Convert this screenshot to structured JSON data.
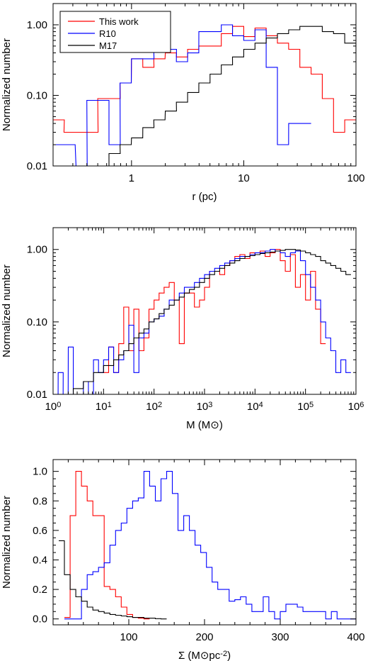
{
  "chart_data": [
    {
      "type": "line",
      "step": true,
      "xscale": "log",
      "yscale": "log",
      "xlim": [
        0.2,
        100
      ],
      "ylim": [
        0.01,
        2
      ],
      "xlabel": "r (pc)",
      "ylabel": "Normalized number",
      "xticks": [
        1,
        10,
        100
      ],
      "xtick_labels": [
        "1",
        "10",
        "100"
      ],
      "yticks": [
        0.01,
        0.1,
        1
      ],
      "ytick_labels": [
        "0.01",
        "0.10",
        "1.00"
      ],
      "legend": {
        "position": "top-left"
      },
      "series": [
        {
          "name": "This work",
          "color": "#ff0000",
          "bin_width_log": 0.1,
          "x": [
            0.2,
            0.25,
            0.32,
            0.4,
            0.5,
            0.63,
            0.79,
            1.0,
            1.26,
            1.58,
            2.0,
            2.51,
            3.16,
            3.98,
            5.01,
            6.31,
            7.94,
            10.0,
            12.59,
            15.85,
            19.95,
            25.12,
            31.62,
            39.81,
            50.12,
            63.1,
            79.43,
            100.0
          ],
          "y": [
            0.045,
            0.03,
            0.03,
            0.03,
            0.09,
            0.09,
            0.15,
            0.33,
            0.25,
            0.33,
            0.4,
            0.35,
            0.45,
            0.5,
            0.5,
            0.75,
            0.95,
            0.68,
            0.9,
            0.7,
            0.55,
            0.45,
            0.25,
            0.2,
            0.09,
            0.03,
            0.045,
            0.045
          ]
        },
        {
          "name": "R10",
          "color": "#0000ff",
          "bin_width_log": 0.1,
          "x": [
            0.2,
            0.25,
            0.32,
            0.4,
            0.5,
            0.63,
            0.79,
            1.0,
            1.26,
            1.58,
            2.0,
            2.51,
            3.16,
            3.98,
            5.01,
            6.31,
            7.94,
            10.0,
            12.59,
            15.85,
            19.95,
            25.12,
            31.62
          ],
          "y": [
            0.02,
            0.02,
            0.01,
            0.085,
            0.085,
            0.02,
            0.15,
            0.33,
            0.33,
            0.45,
            0.45,
            0.3,
            0.4,
            0.8,
            0.8,
            1.0,
            0.7,
            0.6,
            0.85,
            0.25,
            0.02,
            0.04,
            0.04
          ]
        },
        {
          "name": "M17",
          "color": "#000000",
          "bin_width_log": 0.1,
          "x": [
            0.5,
            0.63,
            0.79,
            1.0,
            1.26,
            1.58,
            2.0,
            2.51,
            3.16,
            3.98,
            5.01,
            6.31,
            7.94,
            10.0,
            12.59,
            15.85,
            19.95,
            25.12,
            31.62,
            39.81,
            50.12,
            63.1,
            79.43,
            100.0
          ],
          "y": [
            0.01,
            0.015,
            0.02,
            0.025,
            0.035,
            0.045,
            0.06,
            0.08,
            0.11,
            0.15,
            0.2,
            0.27,
            0.35,
            0.45,
            0.55,
            0.65,
            0.75,
            0.85,
            0.95,
            0.95,
            0.8,
            0.75,
            0.55,
            0.4
          ]
        }
      ]
    },
    {
      "type": "line",
      "step": true,
      "xscale": "log",
      "yscale": "log",
      "xlim": [
        1,
        1000000
      ],
      "ylim": [
        0.01,
        2
      ],
      "xlabel": "M (M⊙)",
      "ylabel": "Normalized number",
      "xtick_labels": [
        "10⁰",
        "10¹",
        "10²",
        "10³",
        "10⁴",
        "10⁵",
        "10⁶"
      ],
      "yticks": [
        0.01,
        0.1,
        1
      ],
      "ytick_labels": [
        "0.01",
        "0.10",
        "1.00"
      ],
      "series": [
        {
          "name": "This work",
          "color": "#ff0000",
          "bin_width_log": 0.1,
          "x": [
            10,
            12.6,
            15.8,
            20,
            25.1,
            31.6,
            39.8,
            50.1,
            63.1,
            79.4,
            100,
            126,
            158,
            200,
            251,
            316,
            398,
            501,
            631,
            794,
            1000,
            1259,
            1585,
            1995,
            2512,
            3162,
            3981,
            5012,
            6310,
            7943,
            10000,
            12589,
            15849,
            19953,
            25119,
            31623,
            39811,
            50119,
            63096,
            79433,
            100000,
            125893,
            158489,
            199526
          ],
          "y": [
            0.02,
            0.045,
            0.02,
            0.05,
            0.16,
            0.04,
            0.15,
            0.04,
            0.06,
            0.15,
            0.2,
            0.25,
            0.3,
            0.35,
            0.2,
            0.05,
            0.25,
            0.25,
            0.16,
            0.2,
            0.3,
            0.5,
            0.5,
            0.45,
            0.6,
            0.7,
            0.8,
            0.85,
            0.75,
            0.9,
            0.85,
            0.95,
            0.8,
            0.9,
            1.0,
            0.7,
            0.5,
            0.85,
            0.3,
            0.45,
            0.2,
            0.5,
            0.15,
            0.05
          ]
        },
        {
          "name": "R10",
          "color": "#0000ff",
          "bin_width_log": 0.1,
          "x": [
            1,
            1.26,
            1.58,
            2,
            2.51,
            3.16,
            3.98,
            5.01,
            6.31,
            7.94,
            10,
            12.6,
            15.8,
            20,
            25.1,
            31.6,
            39.8,
            50.1,
            63.1,
            79.4,
            100,
            126,
            158,
            200,
            251,
            316,
            398,
            501,
            631,
            794,
            1000,
            1259,
            1585,
            1995,
            2512,
            3162,
            3981,
            5012,
            6310,
            7943,
            10000,
            12589,
            15849,
            19953,
            25119,
            31623,
            39811,
            50119,
            63096,
            79433,
            100000,
            125893,
            158489,
            199526,
            251189,
            316228,
            398107,
            501187,
            630957
          ],
          "y": [
            0.01,
            0.02,
            0.01,
            0.045,
            0.01,
            0.01,
            0.015,
            0.01,
            0.03,
            0.02,
            0.03,
            0.045,
            0.02,
            0.03,
            0.04,
            0.09,
            0.02,
            0.06,
            0.07,
            0.1,
            0.11,
            0.12,
            0.15,
            0.2,
            0.2,
            0.25,
            0.3,
            0.3,
            0.35,
            0.4,
            0.45,
            0.5,
            0.55,
            0.6,
            0.65,
            0.7,
            0.75,
            0.8,
            0.8,
            0.85,
            0.9,
            0.9,
            0.95,
            1.0,
            0.95,
            0.9,
            0.8,
            0.9,
            0.95,
            0.7,
            0.45,
            0.3,
            0.2,
            0.1,
            0.06,
            0.04,
            0.02,
            0.03,
            0.02
          ]
        },
        {
          "name": "M17",
          "color": "#000000",
          "bin_width_log": 0.1,
          "x": [
            1.58,
            2,
            2.51,
            3.16,
            3.98,
            5.01,
            6.31,
            7.94,
            10,
            12.6,
            15.8,
            20,
            25.1,
            31.6,
            39.8,
            50.1,
            63.1,
            79.4,
            100,
            126,
            158,
            200,
            251,
            316,
            398,
            501,
            631,
            794,
            1000,
            1259,
            1585,
            1995,
            2512,
            3162,
            3981,
            5012,
            6310,
            7943,
            10000,
            12589,
            15849,
            19953,
            25119,
            31623,
            39811,
            50119,
            63096,
            79433,
            100000,
            125893,
            158489,
            199526,
            251189,
            316228,
            398107,
            501187,
            630957
          ],
          "y": [
            0.01,
            0.01,
            0.012,
            0.012,
            0.015,
            0.015,
            0.02,
            0.02,
            0.025,
            0.025,
            0.03,
            0.035,
            0.04,
            0.05,
            0.06,
            0.07,
            0.08,
            0.1,
            0.11,
            0.13,
            0.15,
            0.17,
            0.2,
            0.22,
            0.25,
            0.28,
            0.3,
            0.35,
            0.4,
            0.45,
            0.5,
            0.55,
            0.6,
            0.65,
            0.7,
            0.75,
            0.8,
            0.82,
            0.85,
            0.88,
            0.9,
            0.92,
            0.95,
            0.97,
            1.0,
            1.0,
            0.98,
            0.95,
            0.9,
            0.85,
            0.8,
            0.7,
            0.65,
            0.6,
            0.55,
            0.5,
            0.45
          ]
        }
      ]
    },
    {
      "type": "line",
      "step": true,
      "xscale": "linear",
      "yscale": "linear",
      "xlim": [
        0,
        400
      ],
      "ylim": [
        -0.04,
        1.08
      ],
      "xlabel": "Σ (M⊙pc⁻²)",
      "ylabel": "Normalized number",
      "xticks": [
        100,
        200,
        300,
        400
      ],
      "xtick_labels": [
        "100",
        "200",
        "300",
        "400"
      ],
      "yticks": [
        0,
        0.2,
        0.4,
        0.6,
        0.8,
        1.0
      ],
      "ytick_labels": [
        "0.0",
        "0.2",
        "0.4",
        "0.6",
        "0.8",
        "1.0"
      ],
      "series": [
        {
          "name": "This work",
          "color": "#ff0000",
          "bin_width": 7.5,
          "x": [
            15,
            22.5,
            30,
            37.5,
            45,
            52.5,
            60,
            67.5,
            75,
            82.5,
            90,
            97.5,
            105,
            112.5,
            120
          ],
          "y": [
            0.01,
            0.7,
            1.0,
            0.9,
            0.8,
            0.7,
            0.7,
            0.22,
            0.2,
            0.15,
            0.08,
            0.03,
            0.01,
            0.005,
            0.0
          ]
        },
        {
          "name": "R10",
          "color": "#0000ff",
          "bin_width": 7.5,
          "x": [
            15,
            22.5,
            30,
            37.5,
            45,
            52.5,
            60,
            67.5,
            75,
            82.5,
            90,
            97.5,
            105,
            112.5,
            120,
            127.5,
            135,
            142.5,
            150,
            157.5,
            165,
            172.5,
            180,
            187.5,
            195,
            202.5,
            210,
            217.5,
            225,
            232.5,
            240,
            247.5,
            255,
            262.5,
            270,
            277.5,
            285,
            292.5,
            300,
            307.5,
            315,
            322.5,
            330,
            337.5,
            345,
            352.5,
            360,
            367.5,
            375,
            382.5,
            390,
            397.5
          ],
          "y": [
            0.0,
            0.0,
            0.0,
            0.2,
            0.3,
            0.32,
            0.35,
            0.38,
            0.5,
            0.6,
            0.65,
            0.75,
            0.8,
            0.82,
            1.0,
            0.9,
            0.8,
            0.95,
            1.0,
            0.85,
            0.6,
            0.7,
            0.6,
            0.5,
            0.45,
            0.35,
            0.25,
            0.2,
            0.2,
            0.12,
            0.13,
            0.15,
            0.1,
            0.05,
            0.05,
            0.15,
            0.05,
            0.0,
            0.05,
            0.1,
            0.1,
            0.08,
            0.05,
            0.05,
            0.05,
            0.05,
            0.0,
            0.05,
            0.0,
            0.0,
            0.0,
            0.0
          ]
        },
        {
          "name": "M17",
          "color": "#000000",
          "bin_width": 7.5,
          "x": [
            7.5,
            15,
            22.5,
            30,
            37.5,
            45,
            52.5,
            60,
            67.5,
            75,
            82.5,
            90,
            97.5,
            105,
            112.5,
            120,
            127.5,
            135,
            142.5
          ],
          "y": [
            0.53,
            0.3,
            0.2,
            0.15,
            0.12,
            0.08,
            0.06,
            0.05,
            0.04,
            0.03,
            0.025,
            0.02,
            0.015,
            0.01,
            0.01,
            0.005,
            0.005,
            0.002,
            0.0
          ]
        }
      ]
    }
  ]
}
